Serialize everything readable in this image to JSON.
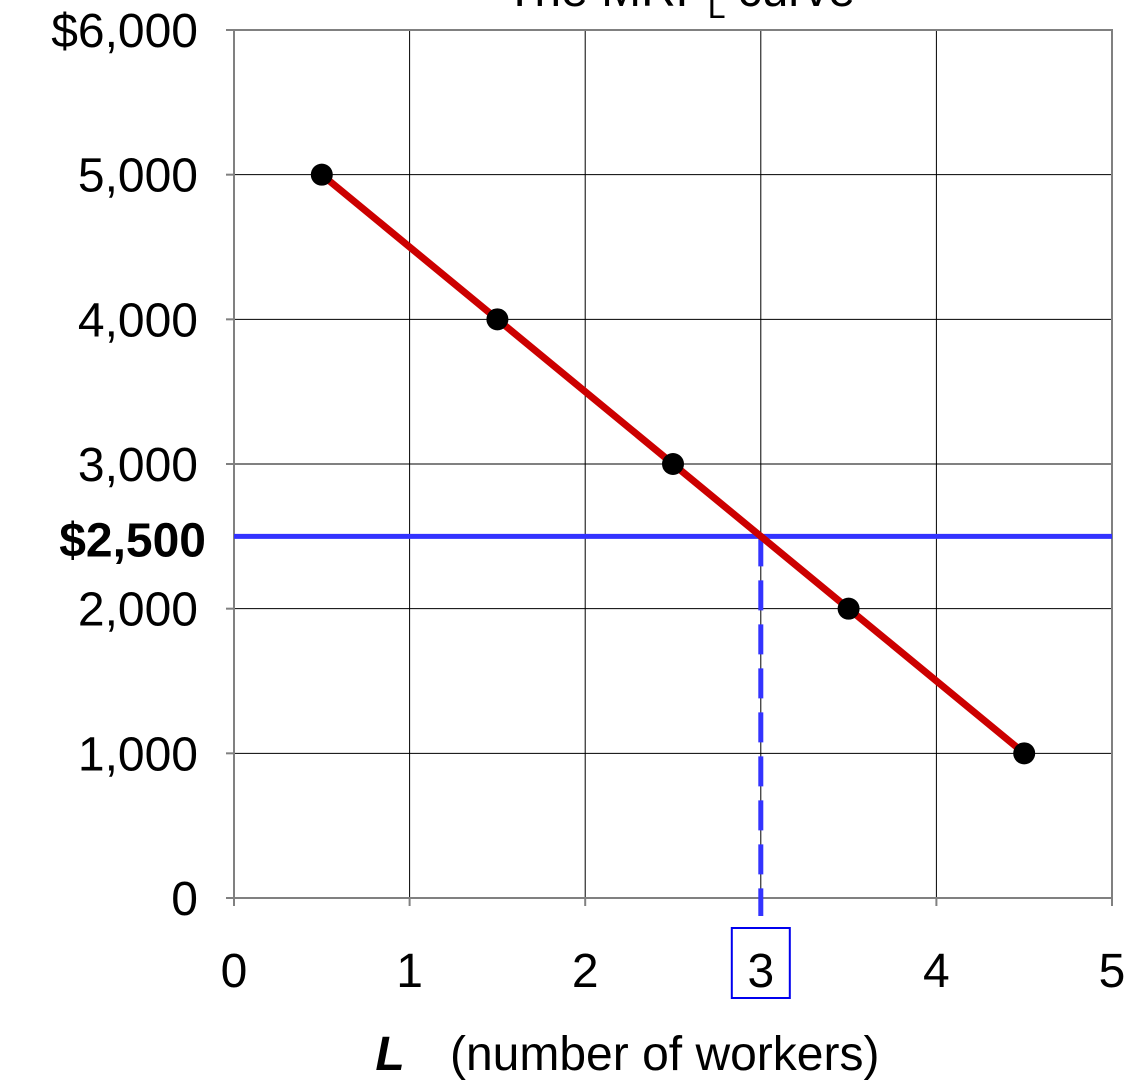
{
  "chart_data": {
    "type": "line",
    "title": {
      "text": "The MRP",
      "subscript": "L",
      "suffix": "curve"
    },
    "x_label": {
      "symbol": "L",
      "text": "(number of workers)"
    },
    "x": [
      0.5,
      1.5,
      2.5,
      3.5,
      4.5
    ],
    "series": [
      {
        "color": "#cc0000",
        "marker_color": "#000000",
        "values": [
          5000,
          4000,
          3000,
          2000,
          1000
        ]
      }
    ],
    "xlim": [
      0,
      5
    ],
    "xticks": [
      0,
      1,
      2,
      3,
      4,
      5
    ],
    "ylim": [
      0,
      6000
    ],
    "yticks": [
      0,
      {
        "value": 1000,
        "label": "1,000"
      },
      {
        "value": 2000,
        "label": "2,000"
      },
      {
        "value": 3000,
        "label": "3,000"
      },
      {
        "value": 4000,
        "label": "4,000"
      },
      {
        "value": 5000,
        "label": "5,000"
      },
      {
        "value": 6000,
        "label": "$6,000"
      }
    ],
    "grid": true,
    "annotation": {
      "label": "$2,500",
      "y": 2500,
      "x": 3,
      "color": "#3333ff",
      "highlight_xtick": 3
    }
  }
}
